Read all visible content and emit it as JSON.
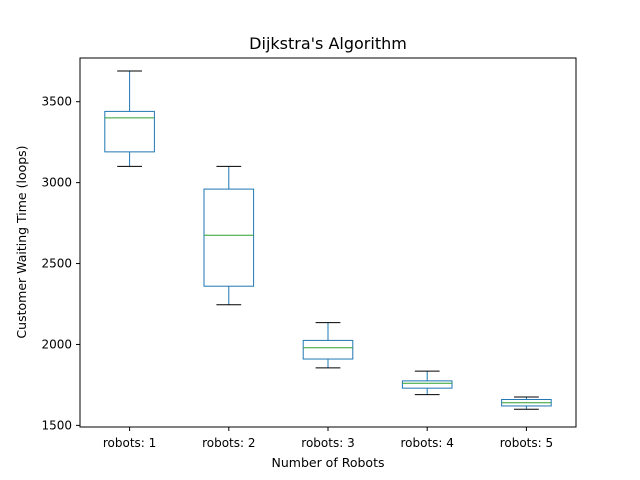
{
  "chart_data": {
    "type": "boxplot",
    "title": "Dijkstra's Algorithm",
    "xlabel": "Number of Robots",
    "ylabel": "Customer Waiting Time (loops)",
    "ylim": [
      1490,
      3770
    ],
    "yticks": [
      1500,
      2000,
      2500,
      3000,
      3500
    ],
    "categories": [
      "robots: 1",
      "robots: 2",
      "robots: 3",
      "robots: 4",
      "robots: 5"
    ],
    "boxes": [
      {
        "whisker_low": 3100,
        "q1": 3190,
        "median": 3400,
        "q3": 3440,
        "whisker_high": 3690
      },
      {
        "whisker_low": 2245,
        "q1": 2360,
        "median": 2675,
        "q3": 2960,
        "whisker_high": 3100
      },
      {
        "whisker_low": 1855,
        "q1": 1910,
        "median": 1980,
        "q3": 2025,
        "whisker_high": 2135
      },
      {
        "whisker_low": 1690,
        "q1": 1730,
        "median": 1760,
        "q3": 1775,
        "whisker_high": 1835
      },
      {
        "whisker_low": 1600,
        "q1": 1620,
        "median": 1640,
        "q3": 1660,
        "whisker_high": 1675
      }
    ],
    "grid": false,
    "colors": {
      "box": "#1f77b4",
      "median": "#2ca02c",
      "caps": "#000000"
    }
  }
}
